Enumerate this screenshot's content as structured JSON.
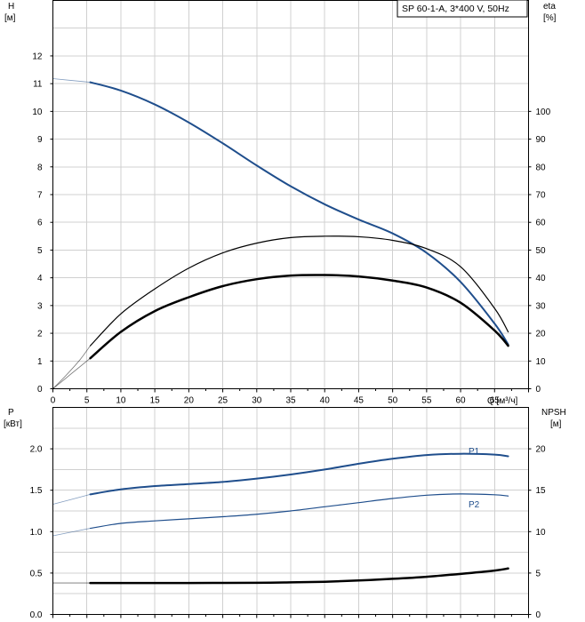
{
  "pump_label": "SP 60-1-A, 3*400 V, 50Hz",
  "chart_data": [
    {
      "type": "line",
      "x_axis": {
        "label": "Q [м³/ч]",
        "range": [
          0,
          70
        ],
        "ticks": [
          0,
          5,
          10,
          15,
          20,
          25,
          30,
          35,
          40,
          45,
          50,
          55,
          60,
          65
        ]
      },
      "left_axis": {
        "label_line1": "H",
        "label_line2": "[м]",
        "range": [
          0,
          14
        ],
        "ticks": [
          0,
          1,
          2,
          3,
          4,
          5,
          6,
          7,
          8,
          9,
          10,
          11,
          12
        ]
      },
      "right_axis": {
        "label_line1": "eta",
        "label_line2": "[%]",
        "range": [
          0,
          140
        ],
        "ticks": [
          0,
          10,
          20,
          30,
          40,
          50,
          60,
          70,
          80,
          90,
          100
        ]
      },
      "grid": true,
      "series": [
        {
          "key": "head",
          "axis": "left",
          "color": "#1f4e8c",
          "width": 2,
          "extension": [
            [
              0,
              11.18
            ],
            [
              5.5,
              11.05
            ]
          ],
          "points": [
            [
              5.5,
              11.05
            ],
            [
              10,
              10.75
            ],
            [
              15,
              10.25
            ],
            [
              20,
              9.6
            ],
            [
              25,
              8.85
            ],
            [
              30,
              8.05
            ],
            [
              35,
              7.3
            ],
            [
              40,
              6.65
            ],
            [
              45,
              6.1
            ],
            [
              50,
              5.6
            ],
            [
              55,
              4.9
            ],
            [
              60,
              3.85
            ],
            [
              65,
              2.35
            ],
            [
              67,
              1.6
            ]
          ]
        },
        {
          "key": "eta_total",
          "axis": "right",
          "color": "#000000",
          "width": 2.5,
          "extension": [
            [
              0,
              0
            ],
            [
              2,
              4
            ],
            [
              4,
              8
            ],
            [
              5.5,
              11
            ]
          ],
          "points": [
            [
              5.5,
              11
            ],
            [
              10,
              20.5
            ],
            [
              15,
              28
            ],
            [
              20,
              33
            ],
            [
              25,
              37
            ],
            [
              30,
              39.5
            ],
            [
              35,
              40.8
            ],
            [
              40,
              41
            ],
            [
              45,
              40.5
            ],
            [
              50,
              39
            ],
            [
              55,
              36.5
            ],
            [
              60,
              31
            ],
            [
              65,
              21
            ],
            [
              67,
              15.5
            ]
          ]
        },
        {
          "key": "eta_pump",
          "axis": "right",
          "color": "#000000",
          "width": 1.2,
          "extension": [
            [
              0,
              0
            ],
            [
              2,
              5
            ],
            [
              4,
              10.5
            ],
            [
              5.5,
              15.5
            ]
          ],
          "points": [
            [
              5.5,
              15.5
            ],
            [
              10,
              27
            ],
            [
              15,
              36
            ],
            [
              20,
              43.5
            ],
            [
              25,
              49
            ],
            [
              30,
              52.5
            ],
            [
              35,
              54.5
            ],
            [
              40,
              55
            ],
            [
              45,
              54.8
            ],
            [
              50,
              53.5
            ],
            [
              55,
              50.5
            ],
            [
              60,
              44
            ],
            [
              65,
              29
            ],
            [
              67,
              20.5
            ]
          ]
        }
      ]
    },
    {
      "type": "line",
      "x_axis": {
        "range": [
          0,
          70
        ]
      },
      "left_axis": {
        "label_line1": "P",
        "label_line2": "[кВт]",
        "range": [
          0,
          2.5
        ],
        "ticks": [
          "0.0",
          "0.5",
          "1.0",
          "1.5",
          "2.0"
        ]
      },
      "right_axis": {
        "label_line1": "NPSH",
        "label_line2": "[м]",
        "range": [
          0,
          25
        ],
        "ticks": [
          "0",
          "5",
          "10",
          "15",
          "20"
        ]
      },
      "grid": true,
      "series": [
        {
          "key": "P1",
          "name": "P1",
          "axis": "left",
          "color": "#1f4e8c",
          "width": 2,
          "extension": [
            [
              0,
              1.33
            ],
            [
              5.5,
              1.45
            ]
          ],
          "points": [
            [
              5.5,
              1.45
            ],
            [
              10,
              1.51
            ],
            [
              15,
              1.55
            ],
            [
              20,
              1.575
            ],
            [
              25,
              1.6
            ],
            [
              30,
              1.64
            ],
            [
              35,
              1.69
            ],
            [
              40,
              1.75
            ],
            [
              45,
              1.82
            ],
            [
              50,
              1.88
            ],
            [
              55,
              1.925
            ],
            [
              60,
              1.94
            ],
            [
              65,
              1.93
            ],
            [
              67,
              1.91
            ]
          ]
        },
        {
          "key": "P2",
          "name": "P2",
          "axis": "left",
          "color": "#1f4e8c",
          "width": 1.2,
          "extension": [
            [
              0,
              0.95
            ],
            [
              5.5,
              1.04
            ]
          ],
          "points": [
            [
              5.5,
              1.04
            ],
            [
              10,
              1.1
            ],
            [
              15,
              1.13
            ],
            [
              20,
              1.155
            ],
            [
              25,
              1.18
            ],
            [
              30,
              1.21
            ],
            [
              35,
              1.25
            ],
            [
              40,
              1.3
            ],
            [
              45,
              1.35
            ],
            [
              50,
              1.4
            ],
            [
              55,
              1.44
            ],
            [
              60,
              1.455
            ],
            [
              65,
              1.445
            ],
            [
              67,
              1.43
            ]
          ]
        },
        {
          "key": "NPSH",
          "axis": "right",
          "color": "#000000",
          "width": 2.5,
          "extension": [
            [
              0,
              3.8
            ],
            [
              5.5,
              3.8
            ]
          ],
          "points": [
            [
              5.5,
              3.8
            ],
            [
              10,
              3.8
            ],
            [
              20,
              3.8
            ],
            [
              30,
              3.82
            ],
            [
              35,
              3.87
            ],
            [
              40,
              3.95
            ],
            [
              45,
              4.1
            ],
            [
              50,
              4.3
            ],
            [
              55,
              4.55
            ],
            [
              60,
              4.9
            ],
            [
              65,
              5.3
            ],
            [
              67,
              5.55
            ]
          ]
        }
      ]
    }
  ]
}
